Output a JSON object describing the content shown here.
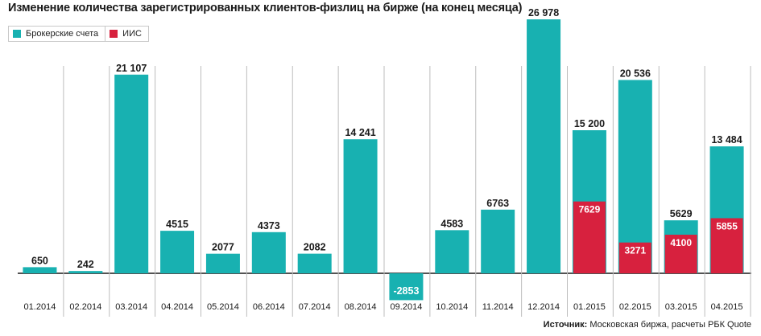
{
  "title": "Изменение количества зарегистрированных клиентов-физлиц на бирже (на конец месяца)",
  "legend": {
    "brokerage_label": "Брокерские счета",
    "iis_label": "ИИС"
  },
  "source": {
    "prefix": "Источник:",
    "text": " Московская биржа, расчеты РБК Quote"
  },
  "colors": {
    "brokerage": "#18b1b1",
    "iis": "#d7213e",
    "axis": "#1a1a1a",
    "separator": "#bdbdbd"
  },
  "chart_data": {
    "type": "bar",
    "title": "Изменение количества зарегистрированных клиентов-физлиц на бирже (на конец месяца)",
    "categories": [
      "01.2014",
      "02.2014",
      "03.2014",
      "04.2014",
      "05.2014",
      "06.2014",
      "07.2014",
      "08.2014",
      "09.2014",
      "10.2014",
      "11.2014",
      "12.2014",
      "01.2015",
      "02.2015",
      "03.2015",
      "04.2015"
    ],
    "series": [
      {
        "name": "Брокерские счета",
        "values": [
          650,
          242,
          21107,
          4515,
          2077,
          4373,
          2082,
          14241,
          -2853,
          4583,
          6763,
          26978,
          15200,
          20536,
          5629,
          13484
        ],
        "labels": [
          "650",
          "242",
          "21 107",
          "4515",
          "2077",
          "4373",
          "2082",
          "14 241",
          "-2853",
          "4583",
          "6763",
          "26 978",
          "15 200",
          "20 536",
          "5629",
          "13 484"
        ]
      },
      {
        "name": "ИИС",
        "values": [
          null,
          null,
          null,
          null,
          null,
          null,
          null,
          null,
          null,
          null,
          null,
          null,
          7629,
          3271,
          4100,
          5855
        ],
        "labels": [
          "",
          "",
          "",
          "",
          "",
          "",
          "",
          "",
          "",
          "",
          "",
          "",
          "7629",
          "3271",
          "4100",
          "5855"
        ]
      }
    ],
    "xlabel": "",
    "ylabel": "",
    "ylim": [
      -2853,
      26978
    ],
    "grid": false,
    "legend_position": "top-left"
  }
}
